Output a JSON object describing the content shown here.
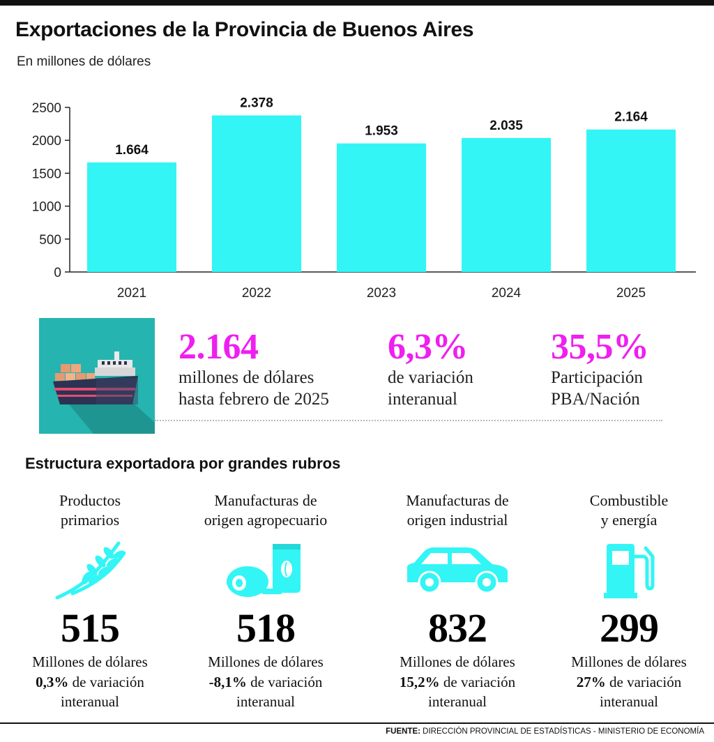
{
  "title": "Exportaciones de la Provincia de Buenos Aires",
  "subtitle": "En millones de dólares",
  "colors": {
    "bar": "#33f5f5",
    "accent": "#ef1ff0",
    "ship_bg": "#25b4b0",
    "icon": "#33f5f5"
  },
  "chart_data": {
    "type": "bar",
    "title": "Exportaciones de la Provincia de Buenos Aires",
    "categories": [
      "2021",
      "2022",
      "2023",
      "2024",
      "2025"
    ],
    "values": [
      1664,
      2378,
      1953,
      2035,
      2164
    ],
    "value_labels": [
      "1.664",
      "2.378",
      "1.953",
      "2.035",
      "2.164"
    ],
    "yticks": [
      0,
      500,
      1000,
      1500,
      2000,
      2500
    ],
    "ylim": [
      0,
      2500
    ],
    "xlabel": "",
    "ylabel": "",
    "grid": false,
    "legend": "none"
  },
  "highlights": [
    {
      "value": "2.164",
      "description": "millones de dólares\nhasta febrero de 2025"
    },
    {
      "value": "6,3%",
      "description": "de variación\ninteranual"
    },
    {
      "value": "35,5%",
      "description": "Participación\nPBA/Nación"
    }
  ],
  "ship_icon": "cargo-ship-icon",
  "section_title": "Estructura exportadora por grandes rubros",
  "rubros": [
    {
      "label": "Productos\nprimarios",
      "icon": "wheat-icon",
      "value": "515",
      "unit": "Millones de dólares",
      "variation": "0,3%",
      "variation_text": " de variación",
      "variation_line2": "interanual"
    },
    {
      "label": "Manufacturas de\norigen agropecuario",
      "icon": "meat-and-bag-icon",
      "value": "518",
      "unit": "Millones de dólares",
      "variation": "-8,1%",
      "variation_text": " de variación",
      "variation_line2": "interanual"
    },
    {
      "label": "Manufacturas de\norigen industrial",
      "icon": "car-icon",
      "value": "832",
      "unit": "Millones de dólares",
      "variation": "15,2%",
      "variation_text": " de variación",
      "variation_line2": "interanual"
    },
    {
      "label": "Combustible\ny energía",
      "icon": "fuel-pump-icon",
      "value": "299",
      "unit": "Millones de dólares",
      "variation": "27%",
      "variation_text": " de variación",
      "variation_line2": "interanual"
    }
  ],
  "source": {
    "label": "FUENTE:",
    "text": " DIRECCIÓN PROVINCIAL DE ESTADÍSTICAS - MINISTERIO DE ECONOMÍA"
  }
}
